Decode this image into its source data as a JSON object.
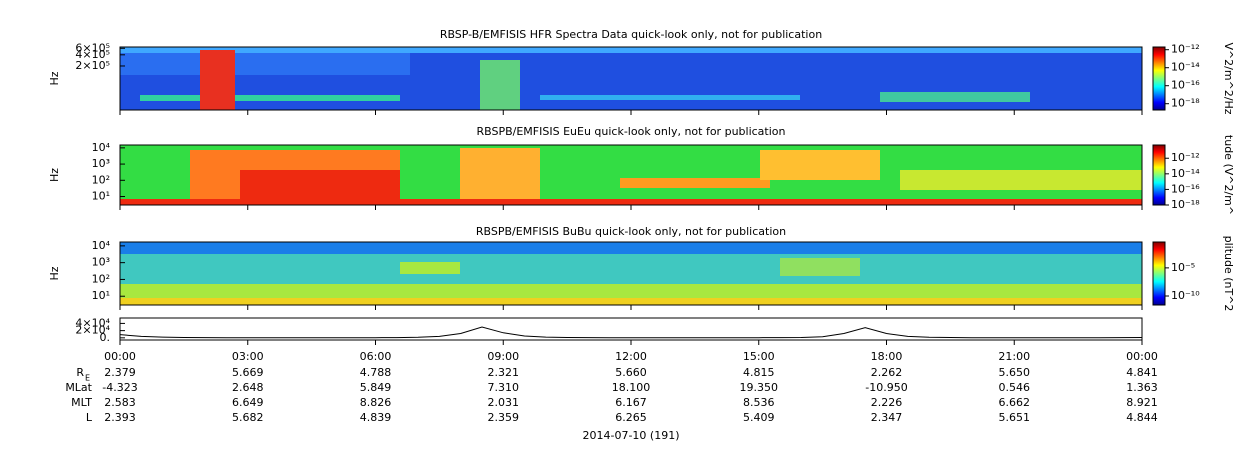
{
  "chart_data": [
    {
      "type": "spectrogram",
      "title": "RBSP-B/EMFISIS  HFR Spectra Data quick-look only, not for publication",
      "ylabel": "Hz",
      "log": true,
      "ylim": [
        13000,
        650000
      ],
      "yticks": [
        {
          "value": 600000,
          "label": "6×10⁵"
        },
        {
          "value": 400000,
          "label": "4×10⁵"
        },
        {
          "value": 200000,
          "label": "2×10⁵"
        }
      ],
      "colorbar": {
        "label": "V^2/m^2/Hz",
        "clim": [
          2e-19,
          2e-12
        ],
        "ticks": [
          {
            "value": 1e-12,
            "label": "10⁻¹²"
          },
          {
            "value": 1e-14,
            "label": "10⁻¹⁴"
          },
          {
            "value": 1e-16,
            "label": "10⁻¹⁶"
          },
          {
            "value": 1e-18,
            "label": "10⁻¹⁸"
          }
        ]
      }
    },
    {
      "type": "spectrogram",
      "title": "RBSPB/EMFISIS  EuEu quick-look only, not for publication",
      "ylabel": "Hz",
      "log": true,
      "ylim": [
        3,
        15000
      ],
      "yticks": [
        {
          "value": 10000,
          "label": "10⁴"
        },
        {
          "value": 1000,
          "label": "10³"
        },
        {
          "value": 100,
          "label": "10²"
        },
        {
          "value": 10,
          "label": "10¹"
        }
      ],
      "colorbar": {
        "label": "tude (V^2/m^",
        "clim": [
          1e-18,
          5e-11
        ],
        "ticks": [
          {
            "value": 1e-12,
            "label": "10⁻¹²"
          },
          {
            "value": 1e-14,
            "label": "10⁻¹⁴"
          },
          {
            "value": 1e-16,
            "label": "10⁻¹⁶"
          },
          {
            "value": 1e-18,
            "label": "10⁻¹⁸"
          }
        ]
      }
    },
    {
      "type": "spectrogram",
      "title": "RBSPB/EMFISIS  BuBu quick-look only, not for publication",
      "ylabel": "Hz",
      "log": true,
      "ylim": [
        3,
        17000
      ],
      "yticks": [
        {
          "value": 10000,
          "label": "10⁴"
        },
        {
          "value": 1000,
          "label": "10³"
        },
        {
          "value": 100,
          "label": "10²"
        },
        {
          "value": 10,
          "label": "10¹"
        }
      ],
      "colorbar": {
        "label": "plitude (nT^2",
        "clim": [
          2.5e-12,
          0.4
        ],
        "ticks": [
          {
            "value": 1e-05,
            "label": "10⁻⁵"
          },
          {
            "value": 1e-10,
            "label": "10⁻¹⁰"
          }
        ]
      }
    },
    {
      "type": "line",
      "xlabel": "2014-07-10 (191)",
      "color": "#000000",
      "xlim": [
        0,
        24
      ],
      "xticks": [
        {
          "value": 0,
          "label": "00:00"
        },
        {
          "value": 3,
          "label": "03:00"
        },
        {
          "value": 6,
          "label": "06:00"
        },
        {
          "value": 9,
          "label": "09:00"
        },
        {
          "value": 12,
          "label": "12:00"
        },
        {
          "value": 15,
          "label": "15:00"
        },
        {
          "value": 18,
          "label": "18:00"
        },
        {
          "value": 21,
          "label": "21:00"
        },
        {
          "value": 24,
          "label": "00:00"
        }
      ],
      "ylim": [
        -6000,
        55000
      ],
      "yticks": [
        {
          "value": 40000,
          "label": "4×10⁴"
        },
        {
          "value": 20000,
          "label": "2×10⁴"
        },
        {
          "value": 0,
          "label": "0."
        }
      ],
      "x": [
        0,
        0.5,
        1,
        1.5,
        2,
        2.5,
        3,
        3.5,
        4,
        4.5,
        5,
        5.5,
        6,
        6.5,
        7,
        7.5,
        8,
        8.5,
        9,
        9.5,
        10,
        10.5,
        11,
        11.5,
        12,
        12.5,
        13,
        13.5,
        14,
        14.5,
        15,
        15.5,
        16,
        16.5,
        17,
        17.5,
        18,
        18.5,
        19,
        19.5,
        20,
        20.5,
        21,
        21.5,
        22,
        22.5,
        23,
        23.5,
        24
      ],
      "values": [
        9000,
        4000,
        2000,
        1000,
        600,
        500,
        500,
        500,
        500,
        500,
        500,
        500,
        500,
        700,
        1500,
        4000,
        12000,
        30000,
        14000,
        5000,
        2000,
        1000,
        600,
        500,
        500,
        500,
        500,
        500,
        500,
        500,
        500,
        600,
        1000,
        3000,
        12000,
        28000,
        12000,
        4000,
        1500,
        800,
        500,
        500,
        500,
        500,
        500,
        500,
        500,
        600,
        1000
      ]
    }
  ],
  "ephemeris": {
    "rows": [
      {
        "label": "R",
        "label_sub": "E",
        "values": [
          "2.379",
          "5.669",
          "4.788",
          "2.321",
          "5.660",
          "4.815",
          "2.262",
          "5.650",
          "4.841"
        ]
      },
      {
        "label": "MLat",
        "values": [
          "-4.323",
          "2.648",
          "5.849",
          "7.310",
          "18.100",
          "19.350",
          "-10.950",
          "0.546",
          "1.363"
        ]
      },
      {
        "label": "MLT",
        "values": [
          "2.583",
          "6.649",
          "8.826",
          "2.031",
          "6.167",
          "8.536",
          "2.226",
          "6.662",
          "8.921"
        ]
      },
      {
        "label": "L",
        "values": [
          "2.393",
          "5.682",
          "4.839",
          "2.359",
          "6.265",
          "5.409",
          "2.347",
          "5.651",
          "4.844"
        ]
      }
    ]
  }
}
